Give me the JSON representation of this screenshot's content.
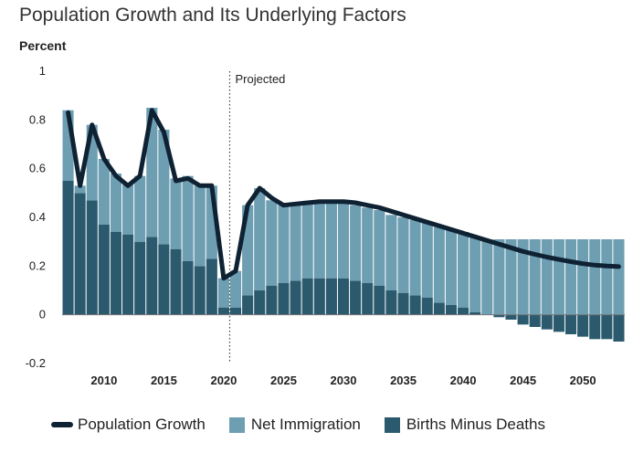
{
  "title": "Population Growth and Its Underlying Factors",
  "colors": {
    "growth": "#0f2233",
    "immigration": "#6d9eb2",
    "births": "#2b5a6e"
  },
  "chart_data": {
    "type": "bar",
    "title": "Population Growth and Its Underlying Factors",
    "ylabel": "Percent",
    "xlabel": "",
    "ylim": [
      -0.2,
      1
    ],
    "yticks": [
      "1",
      "0.8",
      "0.6",
      "0.4",
      "0.2",
      "0",
      "-0.2"
    ],
    "ytick_values": [
      1,
      0.8,
      0.6,
      0.4,
      0.2,
      0,
      -0.2
    ],
    "xticks": [
      2010,
      2015,
      2020,
      2025,
      2030,
      2035,
      2040,
      2045,
      2050
    ],
    "annotation": "Projected",
    "projected_start": 2020.5,
    "legend_position": "bottom",
    "x": [
      2007,
      2008,
      2009,
      2010,
      2011,
      2012,
      2013,
      2014,
      2015,
      2016,
      2017,
      2018,
      2019,
      2020,
      2021,
      2022,
      2023,
      2024,
      2025,
      2026,
      2027,
      2028,
      2029,
      2030,
      2031,
      2032,
      2033,
      2034,
      2035,
      2036,
      2037,
      2038,
      2039,
      2040,
      2041,
      2042,
      2043,
      2044,
      2045,
      2046,
      2047,
      2048,
      2049,
      2050,
      2051,
      2052,
      2053
    ],
    "series": [
      {
        "name": "Births Minus Deaths",
        "kind": "bar",
        "values": [
          0.55,
          0.5,
          0.47,
          0.37,
          0.34,
          0.33,
          0.3,
          0.32,
          0.29,
          0.27,
          0.22,
          0.2,
          0.23,
          0.03,
          0.03,
          0.08,
          0.1,
          0.12,
          0.13,
          0.14,
          0.15,
          0.15,
          0.15,
          0.15,
          0.14,
          0.13,
          0.12,
          0.1,
          0.09,
          0.08,
          0.07,
          0.05,
          0.04,
          0.03,
          0.01,
          0.0,
          -0.01,
          -0.02,
          -0.04,
          -0.05,
          -0.06,
          -0.07,
          -0.08,
          -0.09,
          -0.1,
          -0.1,
          -0.11
        ]
      },
      {
        "name": "Net Immigration",
        "kind": "bar",
        "values": [
          0.29,
          0.03,
          0.31,
          0.27,
          0.24,
          0.21,
          0.27,
          0.53,
          0.47,
          0.29,
          0.35,
          0.33,
          0.3,
          0.12,
          0.15,
          0.37,
          0.42,
          0.35,
          0.33,
          0.32,
          0.31,
          0.31,
          0.31,
          0.31,
          0.31,
          0.31,
          0.31,
          0.31,
          0.31,
          0.31,
          0.31,
          0.31,
          0.31,
          0.31,
          0.31,
          0.31,
          0.31,
          0.31,
          0.31,
          0.31,
          0.31,
          0.31,
          0.31,
          0.31,
          0.31,
          0.31,
          0.31
        ]
      },
      {
        "name": "Population Growth",
        "kind": "line",
        "values": [
          0.83,
          0.53,
          0.78,
          0.64,
          0.57,
          0.53,
          0.57,
          0.84,
          0.75,
          0.55,
          0.56,
          0.53,
          0.53,
          0.15,
          0.18,
          0.45,
          0.52,
          0.48,
          0.45,
          0.455,
          0.46,
          0.465,
          0.465,
          0.465,
          0.46,
          0.45,
          0.44,
          0.425,
          0.41,
          0.395,
          0.38,
          0.365,
          0.35,
          0.335,
          0.32,
          0.305,
          0.29,
          0.275,
          0.26,
          0.248,
          0.237,
          0.227,
          0.218,
          0.21,
          0.204,
          0.2,
          0.198
        ]
      }
    ]
  },
  "legend": [
    {
      "label": "Population Growth",
      "kind": "line",
      "color": "#0f2233"
    },
    {
      "label": "Net Immigration",
      "kind": "box",
      "color": "#6d9eb2"
    },
    {
      "label": "Births Minus Deaths",
      "kind": "box",
      "color": "#2b5a6e"
    }
  ]
}
